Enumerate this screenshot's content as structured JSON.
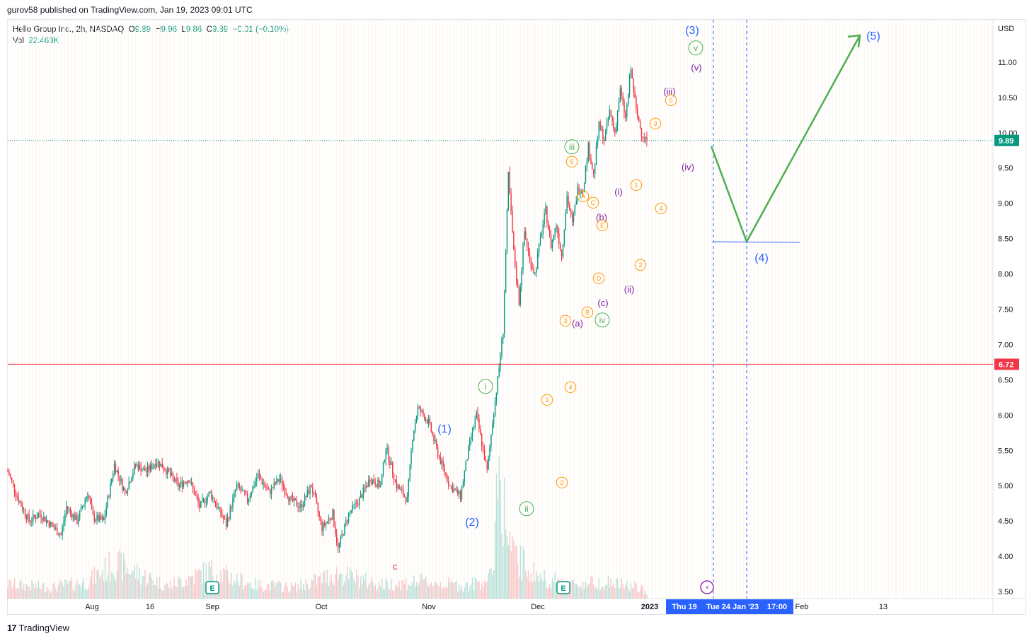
{
  "publisher": "gurov58 published on TradingView.com, Jan 19, 2023 09:01 UTC",
  "footer": {
    "brand": "TradingView",
    "logo_glyph": "17"
  },
  "legend": {
    "symbol": "Hello Group Inc., 2h, NASDAQ",
    "o_label": "O",
    "o_value": "9.89",
    "h_label": "H",
    "h_value": "9.96",
    "l_label": "L",
    "l_value": "9.86",
    "c_label": "C",
    "c_value": "9.89",
    "change": "−0.01 (−0.10%)",
    "vol_label": "Vol",
    "vol_value": "22.463K"
  },
  "colors": {
    "up": "#089981",
    "down": "#f23645",
    "wave_blue": "#2962ff",
    "projection": "#4caf50",
    "hline": "#f23645",
    "axis_highlight": "#2962ff"
  },
  "chart_data": {
    "type": "candlestick",
    "currency": "USD",
    "ylim": [
      3.4,
      11.6
    ],
    "y_ticks": [
      "3.50",
      "4.00",
      "4.50",
      "5.00",
      "5.50",
      "6.00",
      "6.50",
      "7.00",
      "7.50",
      "8.00",
      "8.50",
      "9.00",
      "9.50",
      "10.00",
      "10.50",
      "11.00"
    ],
    "x_ticks": [
      "Aug",
      "16",
      "Sep",
      "Oct",
      "Nov",
      "Dec",
      "2023",
      "Feb",
      "13"
    ],
    "x_highlight_labels": [
      "Thu 19",
      "Tue 24 Jan '23",
      "17:00"
    ],
    "last_price": "9.89",
    "horizontal_line": "6.72",
    "price_path": [
      [
        0,
        5.2
      ],
      [
        2,
        4.8
      ],
      [
        4,
        4.5
      ],
      [
        6,
        4.6
      ],
      [
        8,
        4.45
      ],
      [
        10,
        4.3
      ],
      [
        11,
        4.7
      ],
      [
        13,
        4.5
      ],
      [
        15,
        4.9
      ],
      [
        16,
        4.55
      ],
      [
        18,
        4.5
      ],
      [
        20,
        5.3
      ],
      [
        22,
        4.9
      ],
      [
        24,
        5.3
      ],
      [
        26,
        5.2
      ],
      [
        28,
        5.35
      ],
      [
        30,
        5.2
      ],
      [
        32,
        5.0
      ],
      [
        34,
        5.1
      ],
      [
        36,
        4.7
      ],
      [
        38,
        4.9
      ],
      [
        40,
        4.6
      ],
      [
        41,
        4.45
      ],
      [
        43,
        5.0
      ],
      [
        45,
        4.8
      ],
      [
        47,
        5.15
      ],
      [
        49,
        4.9
      ],
      [
        51,
        5.1
      ],
      [
        53,
        4.8
      ],
      [
        55,
        4.7
      ],
      [
        57,
        5.0
      ],
      [
        59,
        4.4
      ],
      [
        61,
        4.6
      ],
      [
        62,
        4.1
      ],
      [
        64,
        4.6
      ],
      [
        66,
        4.8
      ],
      [
        68,
        5.1
      ],
      [
        70,
        5.0
      ],
      [
        71,
        5.55
      ],
      [
        73,
        5.0
      ],
      [
        75,
        4.8
      ],
      [
        76,
        5.7
      ],
      [
        77,
        6.1
      ],
      [
        79,
        5.9
      ],
      [
        81,
        5.4
      ],
      [
        83,
        5.0
      ],
      [
        85,
        4.85
      ],
      [
        86,
        5.3
      ],
      [
        87,
        5.7
      ],
      [
        88,
        6.0
      ],
      [
        89,
        5.6
      ],
      [
        90,
        5.2
      ],
      [
        91,
        5.9
      ],
      [
        92,
        6.5
      ],
      [
        93,
        7.2
      ],
      [
        94,
        9.4
      ],
      [
        95,
        8.3
      ],
      [
        96,
        7.6
      ],
      [
        97,
        8.6
      ],
      [
        98,
        8.2
      ],
      [
        99,
        8.0
      ],
      [
        100,
        8.5
      ],
      [
        101,
        8.9
      ],
      [
        102,
        8.4
      ],
      [
        103,
        8.7
      ],
      [
        104,
        8.25
      ],
      [
        105,
        9.1
      ],
      [
        106,
        8.7
      ],
      [
        107,
        9.2
      ],
      [
        108,
        9.2
      ],
      [
        109,
        9.8
      ],
      [
        110,
        9.4
      ],
      [
        111,
        10.1
      ],
      [
        112,
        9.9
      ],
      [
        113,
        10.3
      ],
      [
        114,
        10.0
      ],
      [
        115,
        10.6
      ],
      [
        116,
        10.2
      ],
      [
        117,
        10.9
      ],
      [
        118,
        10.3
      ],
      [
        119,
        10.0
      ],
      [
        120,
        9.89
      ]
    ],
    "volume_path": [
      [
        0,
        0.1
      ],
      [
        8,
        0.08
      ],
      [
        15,
        0.12
      ],
      [
        20,
        0.25
      ],
      [
        30,
        0.09
      ],
      [
        38,
        0.2
      ],
      [
        46,
        0.1
      ],
      [
        54,
        0.08
      ],
      [
        62,
        0.18
      ],
      [
        70,
        0.1
      ],
      [
        78,
        0.12
      ],
      [
        86,
        0.09
      ],
      [
        91,
        0.15
      ],
      [
        92,
        1.0
      ],
      [
        93,
        0.7
      ],
      [
        94,
        0.4
      ],
      [
        95,
        0.3
      ],
      [
        100,
        0.15
      ],
      [
        106,
        0.1
      ],
      [
        112,
        0.12
      ],
      [
        118,
        0.08
      ],
      [
        120,
        0.05
      ]
    ],
    "events": [
      "E",
      "E"
    ],
    "wave_labels": {
      "primary": [
        "(1)",
        "(2)",
        "(3)",
        "(4)",
        "(5)"
      ],
      "intermediate": [
        "i",
        "ii",
        "iii",
        "iv",
        "v"
      ],
      "minor": [
        "(i)",
        "(ii)",
        "(iii)",
        "(iv)",
        "(v)",
        "(a)",
        "(b)",
        "(c)"
      ],
      "minute": [
        "1",
        "2",
        "3",
        "4",
        "5",
        "A",
        "B",
        "C",
        "D",
        "E"
      ],
      "other": [
        "c"
      ]
    }
  }
}
